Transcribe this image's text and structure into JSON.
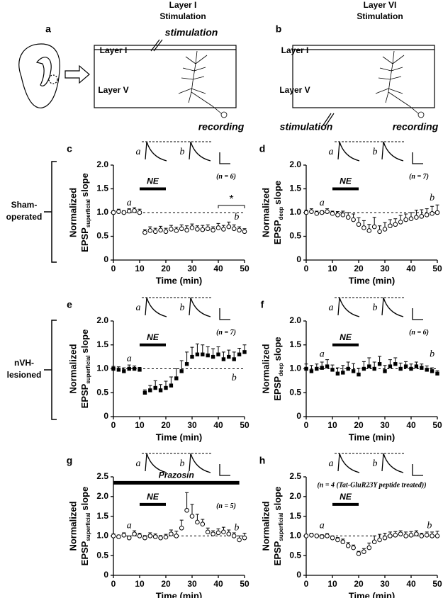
{
  "diagram": {
    "col_titles": [
      [
        "Layer I",
        "Stimulation"
      ],
      [
        "Layer VI",
        "Stimulation"
      ]
    ],
    "panel_letters": [
      "a",
      "b"
    ],
    "layers": [
      "Layer I",
      "Layer V"
    ],
    "stimulation": "stimulation",
    "recording": "recording",
    "row_labels": [
      [
        "Sham-",
        "operated"
      ],
      [
        "nVH-",
        "lesioned"
      ]
    ]
  },
  "chart_data": [
    {
      "type": "scatter",
      "panel": "c",
      "marker": "open-circle",
      "ylabel": [
        "Normalized",
        "EPSP",
        "superficial",
        "slope"
      ],
      "xlabel": "Time (min)",
      "x": [
        0,
        2,
        4,
        6,
        8,
        10,
        12,
        14,
        16,
        18,
        20,
        22,
        24,
        26,
        28,
        30,
        32,
        34,
        36,
        38,
        40,
        42,
        44,
        46,
        48,
        50
      ],
      "values": [
        1.0,
        1.02,
        1.0,
        1.03,
        1.04,
        1.0,
        0.58,
        0.62,
        0.6,
        0.63,
        0.6,
        0.65,
        0.62,
        0.66,
        0.63,
        0.68,
        0.65,
        0.64,
        0.66,
        0.63,
        0.68,
        0.65,
        0.7,
        0.66,
        0.63,
        0.6
      ],
      "errors": [
        0.04,
        0.05,
        0.04,
        0.05,
        0.06,
        0.07,
        0.06,
        0.08,
        0.07,
        0.08,
        0.07,
        0.08,
        0.07,
        0.08,
        0.09,
        0.08,
        0.07,
        0.09,
        0.08,
        0.07,
        0.09,
        0.08,
        0.1,
        0.08,
        0.07,
        0.06
      ],
      "xlim": [
        0,
        50
      ],
      "xticks": [
        0,
        10,
        20,
        30,
        40,
        50
      ],
      "ylim": [
        0,
        2
      ],
      "yticks": [
        0,
        0.5,
        {
          "value": 1,
          "label": "1.0"
        },
        1.5,
        {
          "value": 2,
          "label": "2.0"
        }
      ],
      "baseline": 1,
      "ne_bar": {
        "label": "NE",
        "start": 10,
        "end": 20,
        "y": 1.5
      },
      "n_label": "(n = 6)",
      "point_labels": [
        {
          "text": "a",
          "x": 6,
          "y": 1.2
        },
        {
          "text": "b",
          "x": 47,
          "y": 0.9
        }
      ],
      "significance": {
        "label": "*",
        "start": 40,
        "end": 50,
        "y": 1.15
      }
    },
    {
      "type": "scatter",
      "panel": "d",
      "marker": "open-circle",
      "ylabel": [
        "Normalized",
        "EPSP",
        "deep",
        "slope"
      ],
      "xlabel": "Time (min)",
      "x": [
        0,
        2,
        4,
        6,
        8,
        10,
        12,
        14,
        16,
        18,
        20,
        22,
        24,
        26,
        28,
        30,
        32,
        34,
        36,
        38,
        40,
        42,
        44,
        46,
        48,
        50
      ],
      "values": [
        1.0,
        1.02,
        0.98,
        1.0,
        1.02,
        0.98,
        0.95,
        0.95,
        0.9,
        0.85,
        0.75,
        0.68,
        0.62,
        0.7,
        0.6,
        0.65,
        0.72,
        0.75,
        0.8,
        0.85,
        0.87,
        0.9,
        0.92,
        0.95,
        0.98,
        1.0
      ],
      "errors": [
        0.05,
        0.06,
        0.05,
        0.04,
        0.06,
        0.05,
        0.07,
        0.08,
        0.1,
        0.12,
        0.14,
        0.15,
        0.13,
        0.2,
        0.12,
        0.14,
        0.13,
        0.12,
        0.14,
        0.12,
        0.13,
        0.15,
        0.14,
        0.13,
        0.15,
        0.16
      ],
      "xlim": [
        0,
        50
      ],
      "xticks": [
        0,
        10,
        20,
        30,
        40,
        50
      ],
      "ylim": [
        0,
        2
      ],
      "yticks": [
        0,
        0.5,
        {
          "value": 1,
          "label": "1.0"
        },
        1.5,
        {
          "value": 2,
          "label": "2.0"
        }
      ],
      "baseline": 1,
      "ne_bar": {
        "label": "NE",
        "start": 10,
        "end": 20,
        "y": 1.5
      },
      "n_label": "(n = 7)",
      "point_labels": [
        {
          "text": "a",
          "x": 6,
          "y": 1.2
        },
        {
          "text": "b",
          "x": 48,
          "y": 1.3
        }
      ]
    },
    {
      "type": "scatter",
      "panel": "e",
      "marker": "filled-square",
      "ylabel": [
        "Normalized",
        "EPSP",
        "superficial",
        "slope"
      ],
      "xlabel": "Time (min)",
      "x": [
        0,
        2,
        4,
        6,
        8,
        10,
        12,
        14,
        16,
        18,
        20,
        22,
        24,
        26,
        28,
        30,
        32,
        34,
        36,
        38,
        40,
        42,
        44,
        46,
        48,
        50
      ],
      "values": [
        1.0,
        0.98,
        0.95,
        1.0,
        1.0,
        0.98,
        0.5,
        0.55,
        0.6,
        0.55,
        0.6,
        0.65,
        0.8,
        0.95,
        1.1,
        1.25,
        1.3,
        1.3,
        1.28,
        1.25,
        1.3,
        1.2,
        1.25,
        1.2,
        1.3,
        1.35
      ],
      "errors": [
        0.05,
        0.06,
        0.07,
        0.08,
        0.06,
        0.05,
        0.06,
        0.1,
        0.15,
        0.12,
        0.14,
        0.18,
        0.2,
        0.22,
        0.25,
        0.2,
        0.22,
        0.2,
        0.18,
        0.17,
        0.16,
        0.15,
        0.14,
        0.15,
        0.13,
        0.15
      ],
      "xlim": [
        0,
        50
      ],
      "xticks": [
        0,
        10,
        20,
        30,
        40,
        50
      ],
      "ylim": [
        0,
        2
      ],
      "yticks": [
        0,
        0.5,
        {
          "value": 1,
          "label": "1.0"
        },
        1.5,
        {
          "value": 2,
          "label": "2.0"
        }
      ],
      "baseline": 1,
      "ne_bar": {
        "label": "NE",
        "start": 10,
        "end": 20,
        "y": 1.5
      },
      "n_label": "(n = 7)",
      "point_labels": [
        {
          "text": "a",
          "x": 6,
          "y": 1.2
        },
        {
          "text": "b",
          "x": 46,
          "y": 0.8
        }
      ]
    },
    {
      "type": "scatter",
      "panel": "f",
      "marker": "filled-square",
      "ylabel": [
        "Normalized",
        "EPSP",
        "deep",
        "slope"
      ],
      "xlabel": "Time (min)",
      "x": [
        0,
        2,
        4,
        6,
        8,
        10,
        12,
        14,
        16,
        18,
        20,
        22,
        24,
        26,
        28,
        30,
        32,
        34,
        36,
        38,
        40,
        42,
        44,
        46,
        48,
        50
      ],
      "values": [
        1.0,
        0.95,
        1.0,
        1.02,
        1.05,
        0.98,
        0.9,
        0.92,
        1.0,
        0.95,
        0.88,
        1.0,
        1.05,
        1.0,
        1.1,
        0.95,
        1.05,
        1.1,
        1.0,
        1.05,
        1.0,
        1.05,
        1.02,
        0.98,
        0.95,
        0.9
      ],
      "errors": [
        0.1,
        0.12,
        0.1,
        0.12,
        0.14,
        0.1,
        0.12,
        0.15,
        0.14,
        0.16,
        0.13,
        0.15,
        0.18,
        0.14,
        0.16,
        0.12,
        0.14,
        0.13,
        0.12,
        0.1,
        0.1,
        0.09,
        0.08,
        0.08,
        0.07,
        0.06
      ],
      "xlim": [
        0,
        50
      ],
      "xticks": [
        0,
        10,
        20,
        30,
        40,
        50
      ],
      "ylim": [
        0,
        2
      ],
      "yticks": [
        0,
        0.5,
        {
          "value": 1,
          "label": "1.0"
        },
        1.5,
        {
          "value": 2,
          "label": "2.0"
        }
      ],
      "baseline": 1,
      "ne_bar": {
        "label": "NE",
        "start": 10,
        "end": 20,
        "y": 1.5
      },
      "n_label": "(n = 6)",
      "point_labels": [
        {
          "text": "a",
          "x": 6,
          "y": 1.3
        },
        {
          "text": "b",
          "x": 48,
          "y": 1.3
        }
      ]
    },
    {
      "type": "scatter",
      "panel": "g",
      "marker": "open-circle",
      "ylabel": [
        "Normalized",
        "EPSP",
        "superficial",
        "slope"
      ],
      "xlabel": "Time (min)",
      "x": [
        0,
        2,
        4,
        6,
        8,
        10,
        12,
        14,
        16,
        18,
        20,
        22,
        24,
        26,
        28,
        30,
        32,
        34,
        36,
        38,
        40,
        42,
        44,
        46,
        48,
        50
      ],
      "values": [
        1.0,
        0.98,
        1.02,
        0.95,
        1.05,
        1.0,
        0.95,
        1.0,
        0.98,
        0.95,
        0.97,
        1.05,
        1.0,
        1.2,
        1.65,
        1.5,
        1.35,
        1.3,
        1.1,
        1.05,
        1.08,
        1.1,
        1.05,
        1.0,
        0.9,
        0.95
      ],
      "errors": [
        0.05,
        0.04,
        0.06,
        0.05,
        0.08,
        0.07,
        0.06,
        0.08,
        0.07,
        0.06,
        0.07,
        0.1,
        0.12,
        0.2,
        0.45,
        0.3,
        0.2,
        0.12,
        0.1,
        0.08,
        0.1,
        0.12,
        0.1,
        0.08,
        0.1,
        0.12
      ],
      "xlim": [
        0,
        50
      ],
      "xticks": [
        0,
        10,
        20,
        30,
        40,
        50
      ],
      "ylim": [
        0,
        2.5
      ],
      "yticks": [
        0,
        0.5,
        {
          "value": 1,
          "label": "1.0"
        },
        1.5,
        {
          "value": 2,
          "label": "2.0"
        },
        2.5
      ],
      "baseline": 1,
      "ne_bar": {
        "label": "NE",
        "start": 10,
        "end": 20,
        "y": 1.8
      },
      "n_label": "(n = 5)",
      "drug_bar": {
        "label": "Prazosin",
        "start": 0,
        "end": 48,
        "y": 2.35
      },
      "point_labels": [
        {
          "text": "a",
          "x": 6,
          "y": 1.25
        },
        {
          "text": "b",
          "x": 47,
          "y": 1.2
        }
      ]
    },
    {
      "type": "scatter",
      "panel": "h",
      "marker": "open-circle",
      "ylabel": [
        "Normalized",
        "EPSP",
        "superficial",
        "slope"
      ],
      "xlabel": "Time (min)",
      "x": [
        0,
        2,
        4,
        6,
        8,
        10,
        12,
        14,
        16,
        18,
        20,
        22,
        24,
        26,
        28,
        30,
        32,
        34,
        36,
        38,
        40,
        42,
        44,
        46,
        48,
        50
      ],
      "values": [
        1.0,
        1.02,
        1.0,
        0.98,
        1.0,
        0.95,
        0.9,
        0.85,
        0.75,
        0.7,
        0.55,
        0.6,
        0.7,
        0.85,
        0.9,
        0.95,
        1.0,
        1.02,
        1.05,
        1.0,
        1.02,
        1.05,
        1.0,
        1.02,
        1.0,
        1.0
      ],
      "errors": [
        0.04,
        0.05,
        0.04,
        0.05,
        0.06,
        0.05,
        0.06,
        0.07,
        0.08,
        0.07,
        0.06,
        0.08,
        0.12,
        0.15,
        0.14,
        0.12,
        0.1,
        0.09,
        0.08,
        0.1,
        0.09,
        0.08,
        0.07,
        0.08,
        0.1,
        0.12
      ],
      "xlim": [
        0,
        50
      ],
      "xticks": [
        0,
        10,
        20,
        30,
        40,
        50
      ],
      "ylim": [
        0,
        2.5
      ],
      "yticks": [
        0,
        0.5,
        {
          "value": 1,
          "label": "1.0"
        },
        1.5,
        {
          "value": 2,
          "label": "2.0"
        },
        2.5
      ],
      "baseline": 1,
      "ne_bar": {
        "label": "NE",
        "start": 10,
        "end": 20,
        "y": 1.8
      },
      "n_label": "(n = 4 (Tat-GluR23Y peptide treated))",
      "point_labels": [
        {
          "text": "a",
          "x": 6,
          "y": 1.25
        },
        {
          "text": "b",
          "x": 47,
          "y": 1.25
        }
      ]
    }
  ]
}
